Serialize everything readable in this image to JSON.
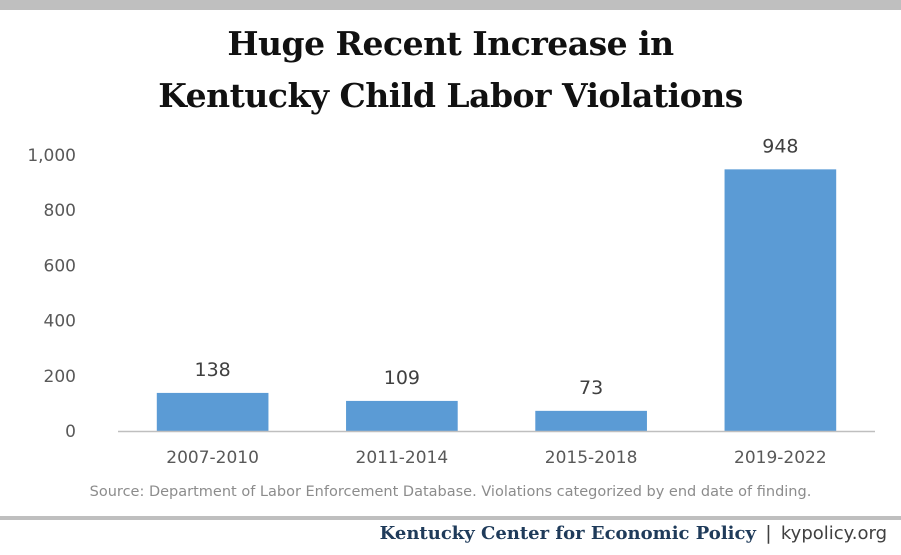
{
  "chart_data": {
    "type": "bar",
    "title_lines": [
      "Huge Recent Increase in",
      "Kentucky Child Labor Violations"
    ],
    "categories": [
      "2007-2010",
      "2011-2014",
      "2015-2018",
      "2019-2022"
    ],
    "values": [
      138,
      109,
      73,
      948
    ],
    "data_labels": [
      "138",
      "109",
      "73",
      "948"
    ],
    "ylim": [
      0,
      1000
    ],
    "yticks": [
      0,
      200,
      400,
      600,
      800,
      1000
    ],
    "ytick_labels": [
      "0",
      "200",
      "400",
      "600",
      "800",
      "1,000"
    ],
    "xlabel": "",
    "ylabel": "",
    "grid": false,
    "bar_color": "#5b9bd5"
  },
  "source": "Source: Department of Labor Enforcement Database. Violations categorized by end date of finding.",
  "footer": {
    "org": "Kentucky Center for Economic Policy",
    "separator": "|",
    "site": "kypolicy.org"
  }
}
